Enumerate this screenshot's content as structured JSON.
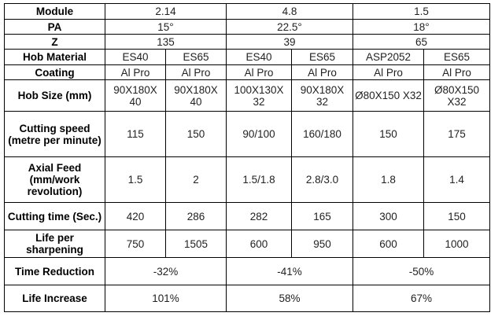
{
  "rows": {
    "module": {
      "label": "Module",
      "values": [
        "2.14",
        "4.8",
        "1.5"
      ]
    },
    "pa": {
      "label": "PA",
      "values": [
        "15°",
        "22.5°",
        "18°"
      ]
    },
    "z": {
      "label": "Z",
      "values": [
        "135",
        "39",
        "65"
      ]
    },
    "hob_material": {
      "label": "Hob Material",
      "values": [
        "ES40",
        "ES65",
        "ES40",
        "ES65",
        "ASP2052",
        "ES65"
      ]
    },
    "coating": {
      "label": "Coating",
      "values": [
        "Al Pro",
        "Al Pro",
        "Al Pro",
        "Al Pro",
        "Al Pro",
        "Al Pro"
      ]
    },
    "hob_size": {
      "label": "Hob Size (mm)",
      "values": [
        "90X180X 40",
        "90X180X 40",
        "100X130X 32",
        "90X180X 32",
        "Ø80X150 X32",
        "Ø80X150 X32"
      ]
    },
    "cutting_speed": {
      "label": "Cutting speed (metre per minute)",
      "values": [
        "115",
        "150",
        "90/100",
        "160/180",
        "150",
        "175"
      ]
    },
    "axial_feed": {
      "label": "Axial Feed (mm/work revolution)",
      "values": [
        "1.5",
        "2",
        "1.5/1.8",
        "2.8/3.0",
        "1.8",
        "1.4"
      ]
    },
    "cutting_time": {
      "label": "Cutting time (Sec.)",
      "values": [
        "420",
        "286",
        "282",
        "165",
        "300",
        "150"
      ]
    },
    "life": {
      "label": "Life per sharpening",
      "values": [
        "750",
        "1505",
        "600",
        "950",
        "600",
        "1000"
      ]
    },
    "time_reduction": {
      "label": "Time Reduction",
      "values": [
        "-32%",
        "-41%",
        "-50%"
      ]
    },
    "life_increase": {
      "label": "Life Increase",
      "values": [
        "101%",
        "58%",
        "67%"
      ]
    }
  }
}
